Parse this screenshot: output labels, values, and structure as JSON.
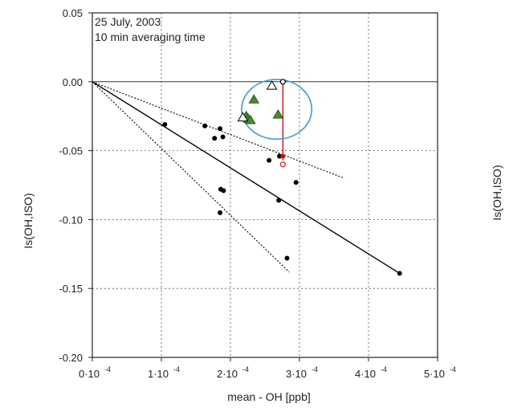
{
  "chart_data": {
    "type": "scatter",
    "annotations": [
      "25 July, 2003",
      "10 min averaging time"
    ],
    "xlabel": "mean - OH [ppb]",
    "ylabel": "Is(OH,ISO)",
    "right_ylabel": "Is(OH,ISO)",
    "xlim": [
      0,
      0.0005
    ],
    "ylim": [
      -0.2,
      0.05
    ],
    "x_ticks": [
      0,
      0.0001,
      0.0002,
      0.0003,
      0.0004,
      0.0005
    ],
    "x_tick_labels": [
      "0·10",
      "1·10",
      "2·10",
      "3·10",
      "4·10",
      "5·10"
    ],
    "x_tick_exponent": "-4",
    "y_ticks": [
      0.05,
      0.0,
      -0.05,
      -0.1,
      -0.15,
      -0.2
    ],
    "y_tick_labels": [
      "0.05",
      "0.00",
      "-0.05",
      "-0.10",
      "-0.15",
      "-0.20"
    ],
    "grid": true,
    "zero_line": true,
    "series": [
      {
        "marker": "filled-circle",
        "color": "#000000",
        "points": [
          [
            0.000105,
            -0.031
          ],
          [
            0.000163,
            -0.032
          ],
          [
            0.000177,
            -0.041
          ],
          [
            0.000185,
            -0.034
          ],
          [
            0.000189,
            -0.04
          ],
          [
            0.000186,
            -0.078
          ],
          [
            0.00019,
            -0.079
          ],
          [
            0.000185,
            -0.095
          ],
          [
            0.000256,
            -0.057
          ],
          [
            0.000271,
            -0.054
          ],
          [
            0.00027,
            -0.086
          ],
          [
            0.000295,
            -0.073
          ],
          [
            0.000282,
            -0.128
          ],
          [
            0.000445,
            -0.139
          ]
        ]
      },
      {
        "marker": "filled-triangle",
        "color": "#4a8a30",
        "points": [
          [
            0.000234,
            -0.013
          ],
          [
            0.000223,
            -0.025
          ],
          [
            0.000226,
            -0.027
          ],
          [
            0.000229,
            -0.028
          ],
          [
            0.000269,
            -0.024
          ]
        ]
      },
      {
        "marker": "open-triangle",
        "color": "#000000",
        "points": [
          [
            0.00026,
            -0.003
          ],
          [
            0.000218,
            -0.026
          ]
        ]
      },
      {
        "marker": "open-circle",
        "color": "#000000",
        "points": [
          [
            0.000276,
            0.0
          ]
        ]
      },
      {
        "marker": "filled-circle",
        "color": "#cc1111",
        "points": [
          [
            0.000276,
            -0.054
          ]
        ]
      },
      {
        "marker": "open-circle",
        "color": "#cc1111",
        "points": [
          [
            0.000276,
            -0.06
          ]
        ]
      }
    ],
    "lines": [
      {
        "style": "solid",
        "color": "#000000",
        "from": [
          0,
          0
        ],
        "to": [
          0.000445,
          -0.139
        ]
      },
      {
        "style": "dotted",
        "color": "#000000",
        "from": [
          0,
          0
        ],
        "to": [
          0.000365,
          -0.07
        ]
      },
      {
        "style": "dotted",
        "color": "#000000",
        "from": [
          0,
          0
        ],
        "to": [
          0.000285,
          -0.138
        ]
      },
      {
        "style": "solid",
        "color": "#cc1111",
        "from": [
          0.000276,
          0.0
        ],
        "to": [
          0.000276,
          -0.057
        ]
      }
    ],
    "highlight_circle": {
      "center": [
        0.000267,
        -0.02
      ],
      "color": "#3a9ccc"
    }
  }
}
